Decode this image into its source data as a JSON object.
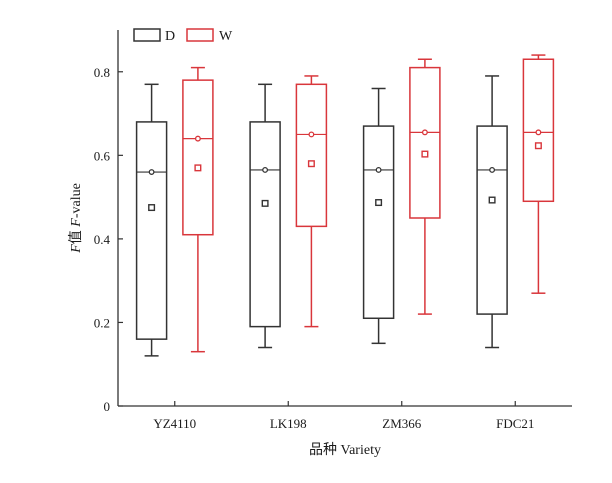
{
  "chart_data": {
    "type": "box",
    "categories": [
      "YZ4110",
      "LK198",
      "ZM366",
      "FDC21"
    ],
    "xlabel": "品种 Variety",
    "ylabel_italic_part": "F",
    "ylabel_mid": "值 ",
    "ylabel_italic_part2": "F",
    "ylabel_rest": "-value",
    "ylim": [
      0,
      0.9
    ],
    "yticks": [
      0,
      0.2,
      0.4,
      0.6,
      0.8
    ],
    "ytick_labels": [
      "0",
      "0.2",
      "0.4",
      "0.6",
      "0.8"
    ],
    "grid": false,
    "legend_position": "top-left",
    "series": [
      {
        "name": "D",
        "color": "#333333",
        "boxes": [
          {
            "min": 0.12,
            "q1": 0.16,
            "median": 0.56,
            "q3": 0.68,
            "max": 0.77,
            "mean": 0.475,
            "median_marker": 0.56
          },
          {
            "min": 0.14,
            "q1": 0.19,
            "median": 0.565,
            "q3": 0.68,
            "max": 0.77,
            "mean": 0.485,
            "median_marker": 0.565
          },
          {
            "min": 0.15,
            "q1": 0.21,
            "median": 0.565,
            "q3": 0.67,
            "max": 0.76,
            "mean": 0.487,
            "median_marker": 0.565
          },
          {
            "min": 0.14,
            "q1": 0.22,
            "median": 0.565,
            "q3": 0.67,
            "max": 0.79,
            "mean": 0.493,
            "median_marker": 0.565
          }
        ]
      },
      {
        "name": "W",
        "color": "#d9363b",
        "boxes": [
          {
            "min": 0.13,
            "q1": 0.41,
            "median": 0.64,
            "q3": 0.78,
            "max": 0.81,
            "mean": 0.57,
            "median_marker": 0.64
          },
          {
            "min": 0.19,
            "q1": 0.43,
            "median": 0.65,
            "q3": 0.77,
            "max": 0.79,
            "mean": 0.58,
            "median_marker": 0.65
          },
          {
            "min": 0.22,
            "q1": 0.45,
            "median": 0.655,
            "q3": 0.81,
            "max": 0.83,
            "mean": 0.603,
            "median_marker": 0.655
          },
          {
            "min": 0.27,
            "q1": 0.49,
            "median": 0.655,
            "q3": 0.83,
            "max": 0.84,
            "mean": 0.623,
            "median_marker": 0.655
          }
        ]
      }
    ]
  }
}
